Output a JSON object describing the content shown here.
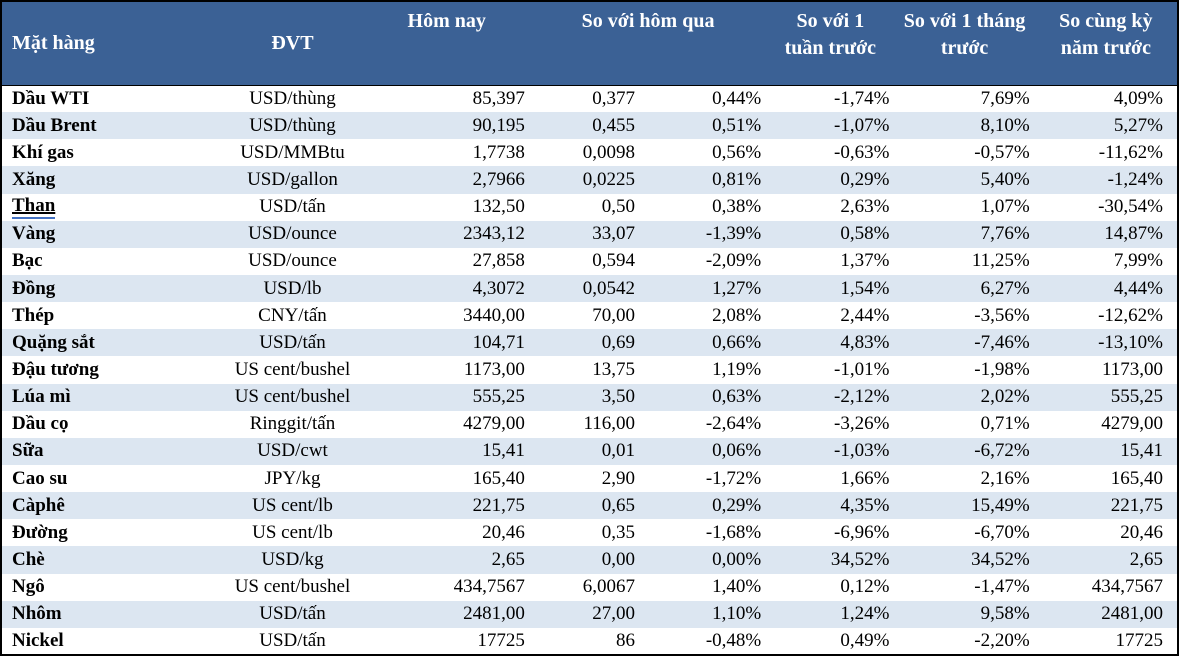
{
  "colors": {
    "header_bg": "#3B6195",
    "header_text": "#FFFFFF",
    "stripe_row_bg": "#DCE6F1",
    "body_text": "#000000",
    "table_border": "#000000",
    "link_underline": "#4472C4"
  },
  "table": {
    "columns": [
      "Mặt hàng",
      "ĐVT",
      "Hôm nay",
      "So với hôm qua",
      "So với 1 tuần trước",
      "So với 1 tháng trước",
      "So cùng kỳ năm trước"
    ],
    "rows": [
      {
        "name": "Dầu WTI",
        "unit": "USD/thùng",
        "today": "85,397",
        "change": "0,377",
        "change_pct": "0,44%",
        "week_pct": "-1,74%",
        "month_pct": "7,69%",
        "year_pct": "4,09%",
        "underlined": false
      },
      {
        "name": "Dầu Brent",
        "unit": "USD/thùng",
        "today": "90,195",
        "change": "0,455",
        "change_pct": "0,51%",
        "week_pct": "-1,07%",
        "month_pct": "8,10%",
        "year_pct": "5,27%",
        "underlined": false
      },
      {
        "name": "Khí gas",
        "unit": "USD/MMBtu",
        "today": "1,7738",
        "change": "0,0098",
        "change_pct": "0,56%",
        "week_pct": "-0,63%",
        "month_pct": "-0,57%",
        "year_pct": "-11,62%",
        "underlined": false
      },
      {
        "name": "Xăng",
        "unit": "USD/gallon",
        "today": "2,7966",
        "change": "0,0225",
        "change_pct": "0,81%",
        "week_pct": "0,29%",
        "month_pct": "5,40%",
        "year_pct": "-1,24%",
        "underlined": false
      },
      {
        "name": "Than",
        "unit": "USD/tấn",
        "today": "132,50",
        "change": "0,50",
        "change_pct": "0,38%",
        "week_pct": "2,63%",
        "month_pct": "1,07%",
        "year_pct": "-30,54%",
        "underlined": true
      },
      {
        "name": "Vàng",
        "unit": "USD/ounce",
        "today": "2343,12",
        "change": "33,07",
        "change_pct": "-1,39%",
        "week_pct": "0,58%",
        "month_pct": "7,76%",
        "year_pct": "14,87%",
        "underlined": false
      },
      {
        "name": "Bạc",
        "unit": "USD/ounce",
        "today": "27,858",
        "change": "0,594",
        "change_pct": "-2,09%",
        "week_pct": "1,37%",
        "month_pct": "11,25%",
        "year_pct": "7,99%",
        "underlined": false
      },
      {
        "name": "Đồng",
        "unit": "USD/lb",
        "today": "4,3072",
        "change": "0,0542",
        "change_pct": "1,27%",
        "week_pct": "1,54%",
        "month_pct": "6,27%",
        "year_pct": "4,44%",
        "underlined": false
      },
      {
        "name": "Thép",
        "unit": "CNY/tấn",
        "today": "3440,00",
        "change": "70,00",
        "change_pct": "2,08%",
        "week_pct": "2,44%",
        "month_pct": "-3,56%",
        "year_pct": "-12,62%",
        "underlined": false
      },
      {
        "name": "Quặng sắt",
        "unit": "USD/tấn",
        "today": "104,71",
        "change": "0,69",
        "change_pct": "0,66%",
        "week_pct": "4,83%",
        "month_pct": "-7,46%",
        "year_pct": "-13,10%",
        "underlined": false
      },
      {
        "name": "Đậu tương",
        "unit": "US cent/bushel",
        "today": "1173,00",
        "change": "13,75",
        "change_pct": "1,19%",
        "week_pct": "-1,01%",
        "month_pct": "-1,98%",
        "year_pct": "1173,00",
        "underlined": false
      },
      {
        "name": "Lúa mì",
        "unit": "US cent/bushel",
        "today": "555,25",
        "change": "3,50",
        "change_pct": "0,63%",
        "week_pct": "-2,12%",
        "month_pct": "2,02%",
        "year_pct": "555,25",
        "underlined": false
      },
      {
        "name": "Dầu cọ",
        "unit": "Ringgit/tấn",
        "today": "4279,00",
        "change": "116,00",
        "change_pct": "-2,64%",
        "week_pct": "-3,26%",
        "month_pct": "0,71%",
        "year_pct": "4279,00",
        "underlined": false
      },
      {
        "name": "Sữa",
        "unit": "USD/cwt",
        "today": "15,41",
        "change": "0,01",
        "change_pct": "0,06%",
        "week_pct": "-1,03%",
        "month_pct": "-6,72%",
        "year_pct": "15,41",
        "underlined": false
      },
      {
        "name": "Cao su",
        "unit": "JPY/kg",
        "today": "165,40",
        "change": "2,90",
        "change_pct": "-1,72%",
        "week_pct": "1,66%",
        "month_pct": "2,16%",
        "year_pct": "165,40",
        "underlined": false
      },
      {
        "name": "Càphê",
        "unit": "US cent/lb",
        "today": "221,75",
        "change": "0,65",
        "change_pct": "0,29%",
        "week_pct": "4,35%",
        "month_pct": "15,49%",
        "year_pct": "221,75",
        "underlined": false
      },
      {
        "name": "Đường",
        "unit": "US cent/lb",
        "today": "20,46",
        "change": "0,35",
        "change_pct": "-1,68%",
        "week_pct": "-6,96%",
        "month_pct": "-6,70%",
        "year_pct": "20,46",
        "underlined": false
      },
      {
        "name": "Chè",
        "unit": "USD/kg",
        "today": "2,65",
        "change": "0,00",
        "change_pct": "0,00%",
        "week_pct": "34,52%",
        "month_pct": "34,52%",
        "year_pct": "2,65",
        "underlined": false
      },
      {
        "name": "Ngô",
        "unit": "US cent/bushel",
        "today": "434,7567",
        "change": "6,0067",
        "change_pct": "1,40%",
        "week_pct": "0,12%",
        "month_pct": "-1,47%",
        "year_pct": "434,7567",
        "underlined": false
      },
      {
        "name": "Nhôm",
        "unit": "USD/tấn",
        "today": "2481,00",
        "change": "27,00",
        "change_pct": "1,10%",
        "week_pct": "1,24%",
        "month_pct": "9,58%",
        "year_pct": "2481,00",
        "underlined": false
      },
      {
        "name": "Nickel",
        "unit": "USD/tấn",
        "today": "17725",
        "change": "86",
        "change_pct": "-0,48%",
        "week_pct": "0,49%",
        "month_pct": "-2,20%",
        "year_pct": "17725",
        "underlined": false
      }
    ]
  }
}
